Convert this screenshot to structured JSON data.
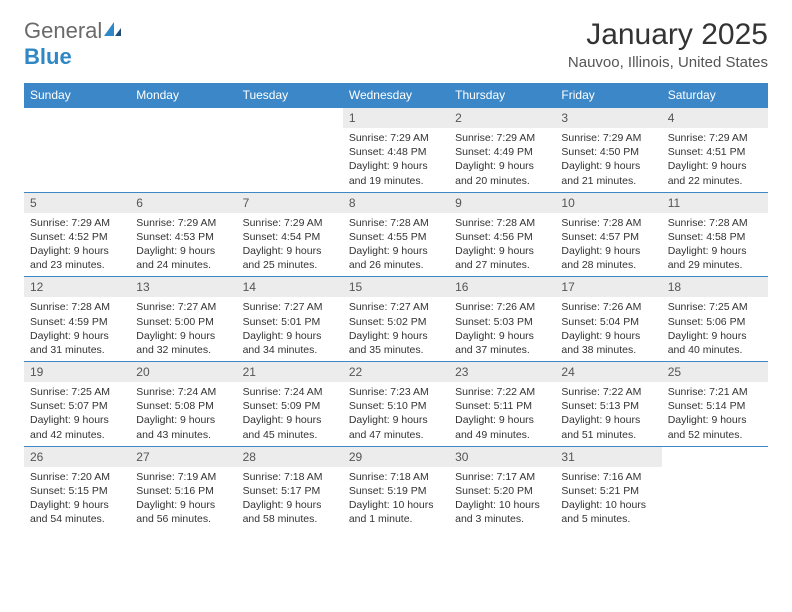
{
  "brand": {
    "word1": "General",
    "word2": "Blue"
  },
  "title": "January 2025",
  "location": "Nauvoo, Illinois, United States",
  "colors": {
    "header_bg": "#3b87c8",
    "header_text": "#ffffff",
    "daynum_bg": "#ececec",
    "rule": "#3b87c8",
    "brand_gray": "#6a6a6a",
    "brand_blue": "#2f88c5"
  },
  "weekdays": [
    "Sunday",
    "Monday",
    "Tuesday",
    "Wednesday",
    "Thursday",
    "Friday",
    "Saturday"
  ],
  "weeks": [
    [
      {
        "empty": true
      },
      {
        "empty": true
      },
      {
        "empty": true
      },
      {
        "n": "1",
        "sr": "Sunrise: 7:29 AM",
        "ss": "Sunset: 4:48 PM",
        "d1": "Daylight: 9 hours",
        "d2": "and 19 minutes."
      },
      {
        "n": "2",
        "sr": "Sunrise: 7:29 AM",
        "ss": "Sunset: 4:49 PM",
        "d1": "Daylight: 9 hours",
        "d2": "and 20 minutes."
      },
      {
        "n": "3",
        "sr": "Sunrise: 7:29 AM",
        "ss": "Sunset: 4:50 PM",
        "d1": "Daylight: 9 hours",
        "d2": "and 21 minutes."
      },
      {
        "n": "4",
        "sr": "Sunrise: 7:29 AM",
        "ss": "Sunset: 4:51 PM",
        "d1": "Daylight: 9 hours",
        "d2": "and 22 minutes."
      }
    ],
    [
      {
        "n": "5",
        "sr": "Sunrise: 7:29 AM",
        "ss": "Sunset: 4:52 PM",
        "d1": "Daylight: 9 hours",
        "d2": "and 23 minutes."
      },
      {
        "n": "6",
        "sr": "Sunrise: 7:29 AM",
        "ss": "Sunset: 4:53 PM",
        "d1": "Daylight: 9 hours",
        "d2": "and 24 minutes."
      },
      {
        "n": "7",
        "sr": "Sunrise: 7:29 AM",
        "ss": "Sunset: 4:54 PM",
        "d1": "Daylight: 9 hours",
        "d2": "and 25 minutes."
      },
      {
        "n": "8",
        "sr": "Sunrise: 7:28 AM",
        "ss": "Sunset: 4:55 PM",
        "d1": "Daylight: 9 hours",
        "d2": "and 26 minutes."
      },
      {
        "n": "9",
        "sr": "Sunrise: 7:28 AM",
        "ss": "Sunset: 4:56 PM",
        "d1": "Daylight: 9 hours",
        "d2": "and 27 minutes."
      },
      {
        "n": "10",
        "sr": "Sunrise: 7:28 AM",
        "ss": "Sunset: 4:57 PM",
        "d1": "Daylight: 9 hours",
        "d2": "and 28 minutes."
      },
      {
        "n": "11",
        "sr": "Sunrise: 7:28 AM",
        "ss": "Sunset: 4:58 PM",
        "d1": "Daylight: 9 hours",
        "d2": "and 29 minutes."
      }
    ],
    [
      {
        "n": "12",
        "sr": "Sunrise: 7:28 AM",
        "ss": "Sunset: 4:59 PM",
        "d1": "Daylight: 9 hours",
        "d2": "and 31 minutes."
      },
      {
        "n": "13",
        "sr": "Sunrise: 7:27 AM",
        "ss": "Sunset: 5:00 PM",
        "d1": "Daylight: 9 hours",
        "d2": "and 32 minutes."
      },
      {
        "n": "14",
        "sr": "Sunrise: 7:27 AM",
        "ss": "Sunset: 5:01 PM",
        "d1": "Daylight: 9 hours",
        "d2": "and 34 minutes."
      },
      {
        "n": "15",
        "sr": "Sunrise: 7:27 AM",
        "ss": "Sunset: 5:02 PM",
        "d1": "Daylight: 9 hours",
        "d2": "and 35 minutes."
      },
      {
        "n": "16",
        "sr": "Sunrise: 7:26 AM",
        "ss": "Sunset: 5:03 PM",
        "d1": "Daylight: 9 hours",
        "d2": "and 37 minutes."
      },
      {
        "n": "17",
        "sr": "Sunrise: 7:26 AM",
        "ss": "Sunset: 5:04 PM",
        "d1": "Daylight: 9 hours",
        "d2": "and 38 minutes."
      },
      {
        "n": "18",
        "sr": "Sunrise: 7:25 AM",
        "ss": "Sunset: 5:06 PM",
        "d1": "Daylight: 9 hours",
        "d2": "and 40 minutes."
      }
    ],
    [
      {
        "n": "19",
        "sr": "Sunrise: 7:25 AM",
        "ss": "Sunset: 5:07 PM",
        "d1": "Daylight: 9 hours",
        "d2": "and 42 minutes."
      },
      {
        "n": "20",
        "sr": "Sunrise: 7:24 AM",
        "ss": "Sunset: 5:08 PM",
        "d1": "Daylight: 9 hours",
        "d2": "and 43 minutes."
      },
      {
        "n": "21",
        "sr": "Sunrise: 7:24 AM",
        "ss": "Sunset: 5:09 PM",
        "d1": "Daylight: 9 hours",
        "d2": "and 45 minutes."
      },
      {
        "n": "22",
        "sr": "Sunrise: 7:23 AM",
        "ss": "Sunset: 5:10 PM",
        "d1": "Daylight: 9 hours",
        "d2": "and 47 minutes."
      },
      {
        "n": "23",
        "sr": "Sunrise: 7:22 AM",
        "ss": "Sunset: 5:11 PM",
        "d1": "Daylight: 9 hours",
        "d2": "and 49 minutes."
      },
      {
        "n": "24",
        "sr": "Sunrise: 7:22 AM",
        "ss": "Sunset: 5:13 PM",
        "d1": "Daylight: 9 hours",
        "d2": "and 51 minutes."
      },
      {
        "n": "25",
        "sr": "Sunrise: 7:21 AM",
        "ss": "Sunset: 5:14 PM",
        "d1": "Daylight: 9 hours",
        "d2": "and 52 minutes."
      }
    ],
    [
      {
        "n": "26",
        "sr": "Sunrise: 7:20 AM",
        "ss": "Sunset: 5:15 PM",
        "d1": "Daylight: 9 hours",
        "d2": "and 54 minutes."
      },
      {
        "n": "27",
        "sr": "Sunrise: 7:19 AM",
        "ss": "Sunset: 5:16 PM",
        "d1": "Daylight: 9 hours",
        "d2": "and 56 minutes."
      },
      {
        "n": "28",
        "sr": "Sunrise: 7:18 AM",
        "ss": "Sunset: 5:17 PM",
        "d1": "Daylight: 9 hours",
        "d2": "and 58 minutes."
      },
      {
        "n": "29",
        "sr": "Sunrise: 7:18 AM",
        "ss": "Sunset: 5:19 PM",
        "d1": "Daylight: 10 hours",
        "d2": "and 1 minute."
      },
      {
        "n": "30",
        "sr": "Sunrise: 7:17 AM",
        "ss": "Sunset: 5:20 PM",
        "d1": "Daylight: 10 hours",
        "d2": "and 3 minutes."
      },
      {
        "n": "31",
        "sr": "Sunrise: 7:16 AM",
        "ss": "Sunset: 5:21 PM",
        "d1": "Daylight: 10 hours",
        "d2": "and 5 minutes."
      },
      {
        "empty": true
      }
    ]
  ]
}
